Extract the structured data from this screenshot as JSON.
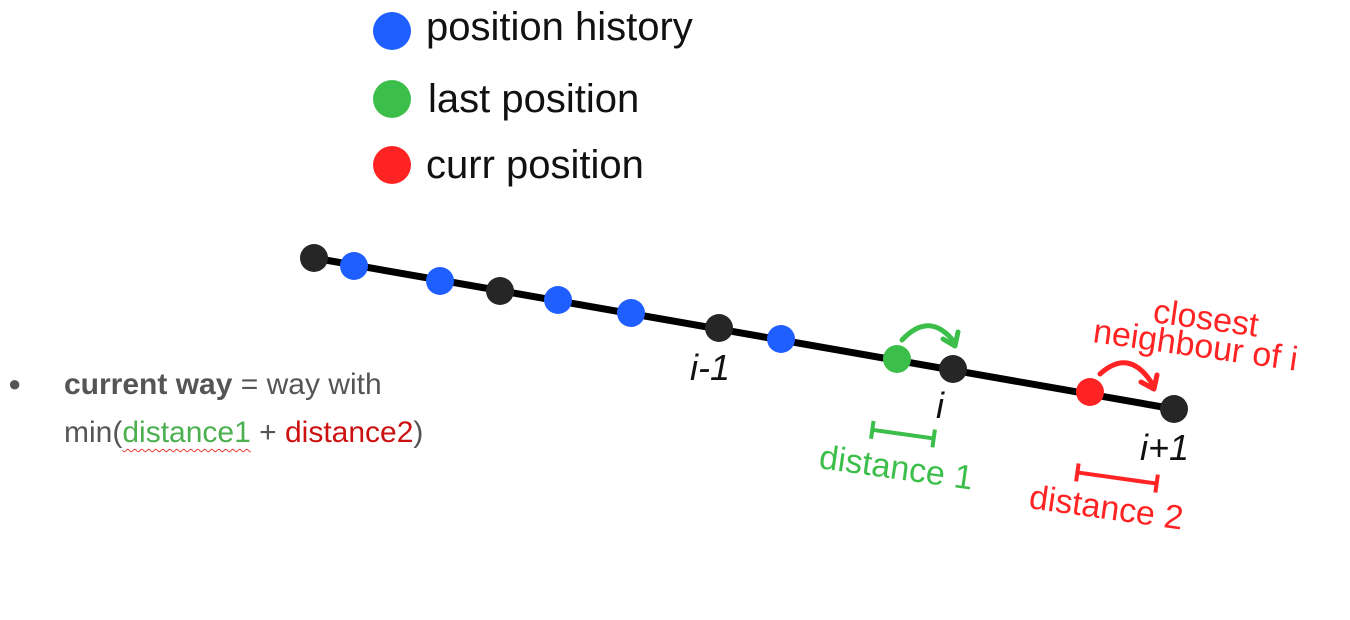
{
  "colors": {
    "history": "#1f5fff",
    "last": "#3cbf4a",
    "curr": "#ff2323",
    "node": "#262626",
    "line": "#000000",
    "green_text": "#4caf50",
    "red_text": "#cc1111"
  },
  "legend": [
    {
      "key": "history",
      "label": "position history"
    },
    {
      "key": "last",
      "label": "last position"
    },
    {
      "key": "curr",
      "label": "curr position"
    }
  ],
  "nodes": {
    "prev": "i-1",
    "cur": "i",
    "next": "i+1"
  },
  "annotations": {
    "closest_line1": "closest",
    "closest_line2": "neighbour of i",
    "distance1": "distance 1",
    "distance2": "distance 2"
  },
  "note": {
    "bullet": "●",
    "bold": "current way",
    "text1": " = way with",
    "min_open": "min(",
    "d1": "distance1",
    "plus": " + ",
    "d2": "distance2",
    "close": ")"
  }
}
